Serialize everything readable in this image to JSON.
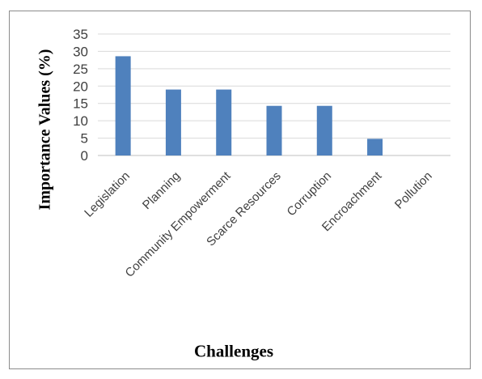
{
  "chart_data": {
    "type": "bar",
    "title": "",
    "xlabel": "Challenges",
    "ylabel": "Importance Values (%)",
    "categories": [
      "Legislation",
      "Planning",
      "Community Empowerment",
      "Scarce Resources",
      "Corruption",
      "Encroachment",
      "Pollution"
    ],
    "values": [
      28.6,
      19,
      19,
      14.3,
      14.3,
      4.8,
      0
    ],
    "ylim": [
      0,
      35
    ],
    "yticks": [
      0,
      5,
      10,
      15,
      20,
      25,
      30,
      35
    ],
    "grid": true,
    "legend": "none",
    "colors": {
      "bar": "#4f81bd",
      "grid": "#d9d9d9",
      "axis": "#bfbfbf"
    }
  }
}
